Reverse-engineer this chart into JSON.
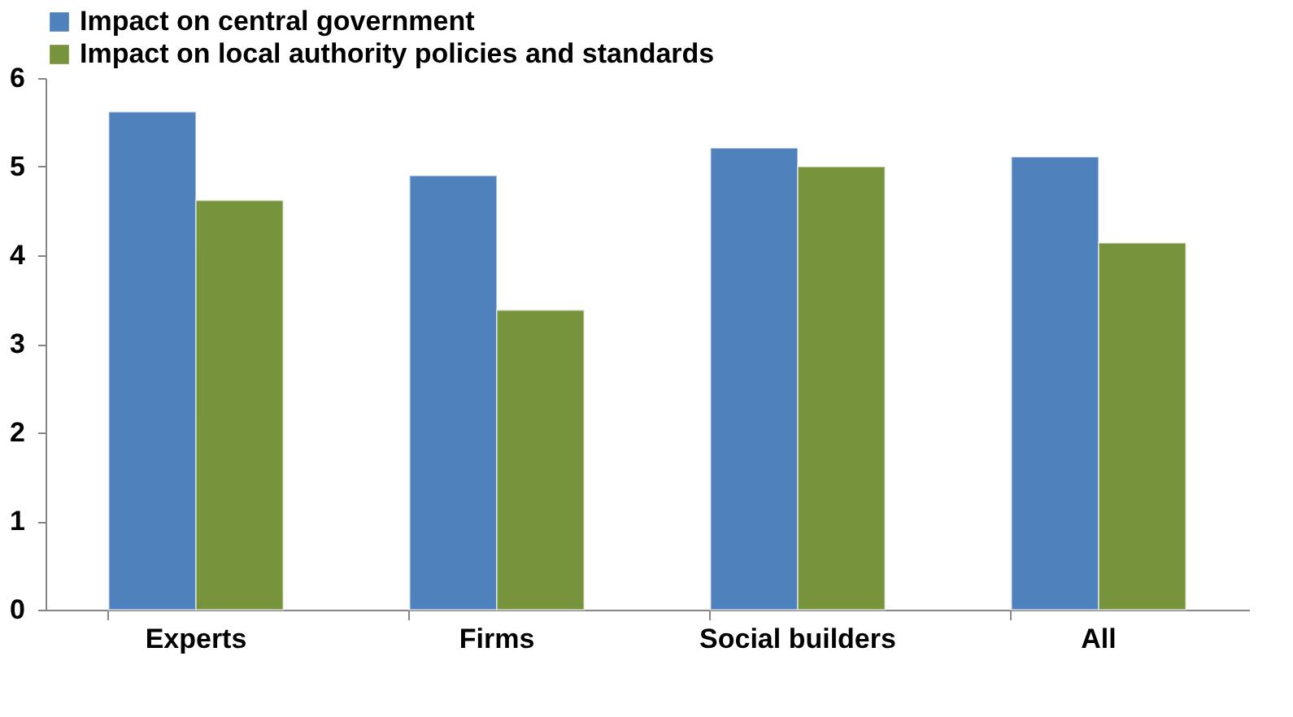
{
  "chart_data": {
    "type": "bar",
    "categories": [
      "Experts",
      "Firms",
      "Social builders",
      "All"
    ],
    "series": [
      {
        "name": "Impact on central government",
        "color": "#4f81bd",
        "values": [
          5.62,
          4.9,
          5.21,
          5.11
        ]
      },
      {
        "name": "Impact on local authority policies and standards",
        "color": "#77933c",
        "values": [
          4.62,
          3.38,
          5.0,
          4.14
        ]
      }
    ],
    "ylim": [
      0,
      6
    ],
    "yticks": [
      0,
      1,
      2,
      3,
      4,
      5,
      6
    ],
    "grid": false,
    "legend": "top"
  }
}
